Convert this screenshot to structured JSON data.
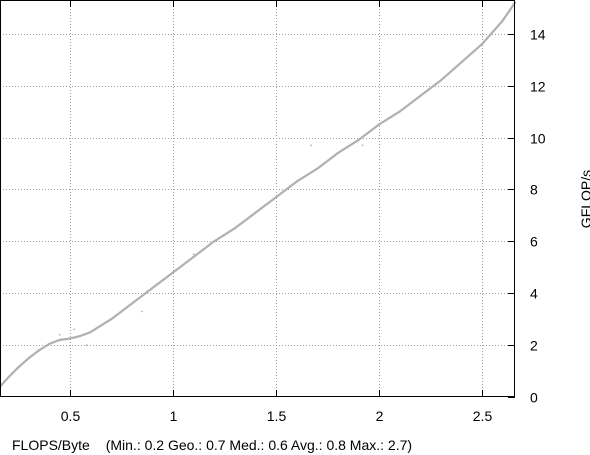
{
  "chart_data": {
    "type": "scatter",
    "title": "",
    "xlabel": "FLOPS/Byte",
    "x_stats": "(Min.: 0.2   Geo.: 0.7   Med.: 0.6   Avg.: 0.8   Max.: 2.7)",
    "ylabel": "GFLOP/s",
    "xlim": [
      0.16,
      2.66
    ],
    "ylim": [
      0,
      15.3
    ],
    "x_ticks": [
      {
        "value": 0.5,
        "label": "0.5"
      },
      {
        "value": 1,
        "label": "1"
      },
      {
        "value": 1.5,
        "label": "1.5"
      },
      {
        "value": 2,
        "label": "2"
      },
      {
        "value": 2.5,
        "label": "2.5"
      }
    ],
    "y_ticks": [
      {
        "value": 0,
        "label": "0"
      },
      {
        "value": 2,
        "label": "2"
      },
      {
        "value": 4,
        "label": "4"
      },
      {
        "value": 6,
        "label": "6"
      },
      {
        "value": 8,
        "label": "8"
      },
      {
        "value": 10,
        "label": "10"
      },
      {
        "value": 12,
        "label": "12"
      },
      {
        "value": 14,
        "label": "14"
      }
    ],
    "grid": true,
    "y_axis_side": "right",
    "series": [
      {
        "color": "#b0b0b0",
        "x": [
          0.16,
          0.2,
          0.25,
          0.3,
          0.35,
          0.4,
          0.45,
          0.5,
          0.55,
          0.6,
          0.65,
          0.7,
          0.8,
          0.9,
          1.0,
          1.1,
          1.2,
          1.3,
          1.4,
          1.5,
          1.6,
          1.7,
          1.8,
          1.9,
          2.0,
          2.1,
          2.2,
          2.3,
          2.4,
          2.5,
          2.6,
          2.66
        ],
        "y": [
          0.4,
          0.75,
          1.15,
          1.5,
          1.8,
          2.05,
          2.2,
          2.25,
          2.35,
          2.5,
          2.75,
          3.0,
          3.6,
          4.2,
          4.8,
          5.4,
          6.0,
          6.5,
          7.1,
          7.7,
          8.3,
          8.8,
          9.4,
          9.9,
          10.5,
          11.0,
          11.6,
          12.2,
          12.9,
          13.6,
          14.5,
          15.2
        ]
      },
      {
        "color": "#b0b0b0",
        "x": [
          0.45,
          0.52,
          0.58,
          0.85,
          1.1,
          1.67,
          1.92
        ],
        "y": [
          2.4,
          2.6,
          2.0,
          3.3,
          5.5,
          9.7,
          9.7
        ]
      }
    ]
  }
}
